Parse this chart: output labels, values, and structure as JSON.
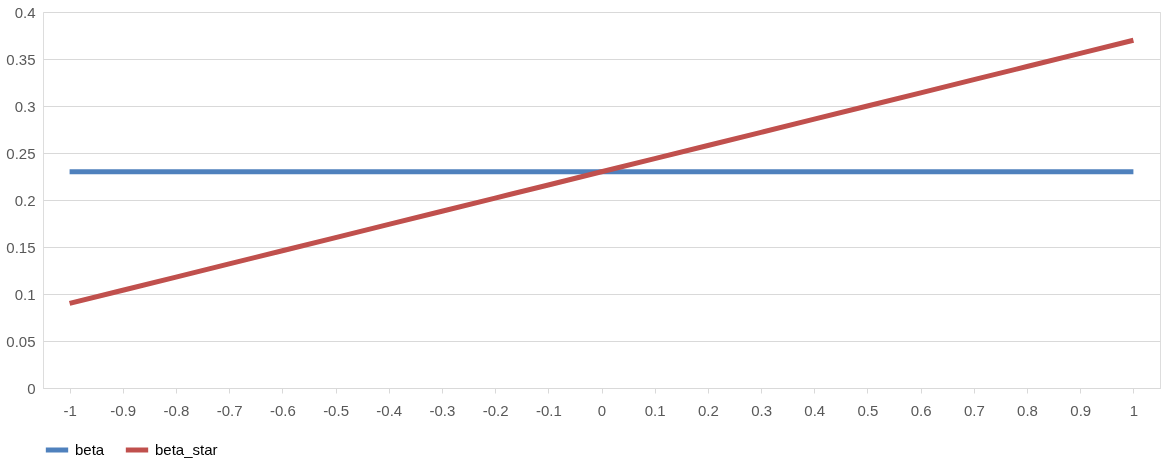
{
  "chart_data": {
    "type": "line",
    "categories": [
      "-1",
      "-0.9",
      "-0.8",
      "-0.7",
      "-0.6",
      "-0.5",
      "-0.4",
      "-0.3",
      "-0.2",
      "-0.1",
      "0",
      "0.1",
      "0.2",
      "0.3",
      "0.4",
      "0.5",
      "0.6",
      "0.7",
      "0.8",
      "0.9",
      "1"
    ],
    "series": [
      {
        "name": "beta",
        "color": "#4f81bd",
        "values": [
          0.23,
          0.23,
          0.23,
          0.23,
          0.23,
          0.23,
          0.23,
          0.23,
          0.23,
          0.23,
          0.23,
          0.23,
          0.23,
          0.23,
          0.23,
          0.23,
          0.23,
          0.23,
          0.23,
          0.23,
          0.23
        ]
      },
      {
        "name": "beta_star",
        "color": "#c0504d",
        "values": [
          0.09,
          0.104,
          0.118,
          0.132,
          0.146,
          0.16,
          0.174,
          0.188,
          0.202,
          0.216,
          0.23,
          0.244,
          0.258,
          0.272,
          0.286,
          0.3,
          0.314,
          0.328,
          0.342,
          0.356,
          0.37
        ]
      }
    ],
    "ylim": [
      0,
      0.4
    ],
    "yticks": [
      0,
      0.05,
      0.1,
      0.15,
      0.2,
      0.25,
      0.3,
      0.35,
      0.4
    ],
    "grid": "y",
    "legend": "bottom",
    "marker": "none",
    "line_style": "solid"
  }
}
